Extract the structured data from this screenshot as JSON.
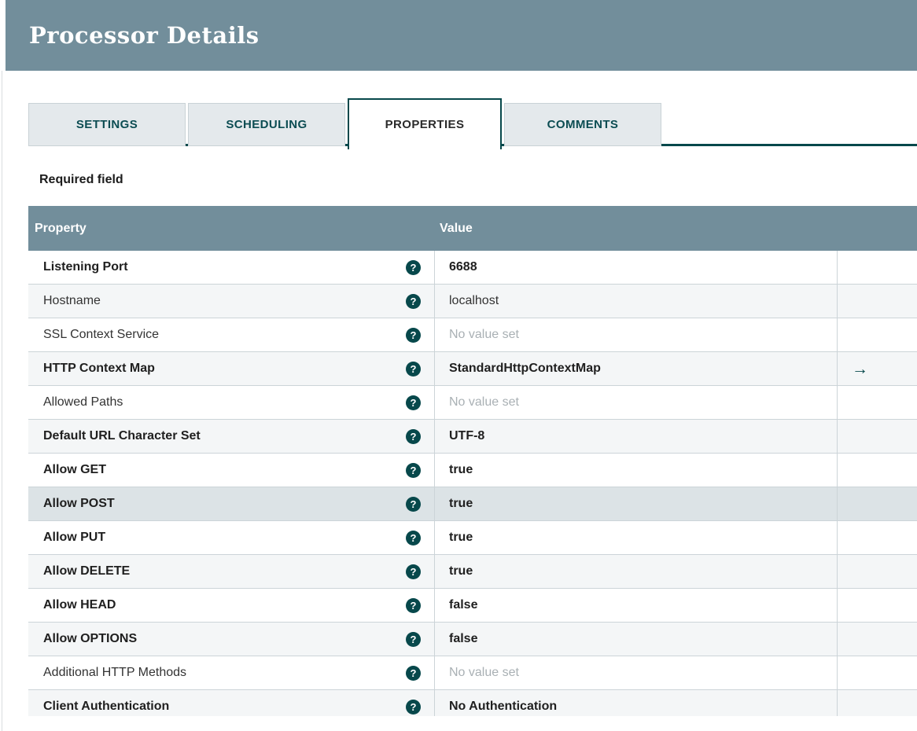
{
  "dialog": {
    "title": "Processor Details"
  },
  "tabs": [
    {
      "label": "SETTINGS",
      "active": false
    },
    {
      "label": "SCHEDULING",
      "active": false
    },
    {
      "label": "PROPERTIES",
      "active": true
    },
    {
      "label": "COMMENTS",
      "active": false
    }
  ],
  "required_note": "Required field",
  "properties_table": {
    "headers": {
      "property": "Property",
      "value": "Value"
    },
    "help_icon_glyph": "?",
    "goto_icon_glyph": "→",
    "rows": [
      {
        "property": "Listening Port",
        "value": "6688",
        "required": true,
        "unset": false,
        "goto": false,
        "hover": false
      },
      {
        "property": "Hostname",
        "value": "localhost",
        "required": false,
        "unset": false,
        "goto": false,
        "hover": false
      },
      {
        "property": "SSL Context Service",
        "value": "No value set",
        "required": false,
        "unset": true,
        "goto": false,
        "hover": false
      },
      {
        "property": "HTTP Context Map",
        "value": "StandardHttpContextMap",
        "required": true,
        "unset": false,
        "goto": true,
        "hover": false
      },
      {
        "property": "Allowed Paths",
        "value": "No value set",
        "required": false,
        "unset": true,
        "goto": false,
        "hover": false
      },
      {
        "property": "Default URL Character Set",
        "value": "UTF-8",
        "required": true,
        "unset": false,
        "goto": false,
        "hover": false
      },
      {
        "property": "Allow GET",
        "value": "true",
        "required": true,
        "unset": false,
        "goto": false,
        "hover": false
      },
      {
        "property": "Allow POST",
        "value": "true",
        "required": true,
        "unset": false,
        "goto": false,
        "hover": true
      },
      {
        "property": "Allow PUT",
        "value": "true",
        "required": true,
        "unset": false,
        "goto": false,
        "hover": false
      },
      {
        "property": "Allow DELETE",
        "value": "true",
        "required": true,
        "unset": false,
        "goto": false,
        "hover": false
      },
      {
        "property": "Allow HEAD",
        "value": "false",
        "required": true,
        "unset": false,
        "goto": false,
        "hover": false
      },
      {
        "property": "Allow OPTIONS",
        "value": "false",
        "required": true,
        "unset": false,
        "goto": false,
        "hover": false
      },
      {
        "property": "Additional HTTP Methods",
        "value": "No value set",
        "required": false,
        "unset": true,
        "goto": false,
        "hover": false
      },
      {
        "property": "Client Authentication",
        "value": "No Authentication",
        "required": true,
        "unset": false,
        "goto": false,
        "hover": false
      }
    ]
  },
  "colors": {
    "header_bg": "#728e9b",
    "accent_teal": "#07484b",
    "tab_inactive_bg": "#e4e9ec",
    "row_alt_bg": "#f4f6f7",
    "row_hover_bg": "#dce3e6",
    "row_border": "#ccd4d8",
    "unset_text": "#a9b0b4"
  }
}
